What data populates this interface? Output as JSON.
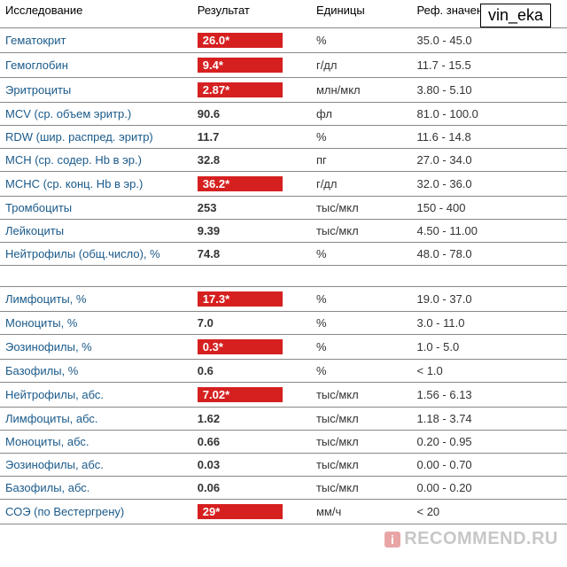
{
  "headers": {
    "name": "Исследование",
    "result": "Результат",
    "unit": "Единицы",
    "ref": "Реф. значения"
  },
  "watermark_top": "vin_eka",
  "watermark_bottom": "RECOMMEND.RU",
  "rows": [
    {
      "name": "Гематокрит",
      "result": "26.0*",
      "flag": true,
      "unit": "%",
      "ref": "35.0 - 45.0"
    },
    {
      "name": "Гемоглобин",
      "result": "9.4*",
      "flag": true,
      "unit": "г/дл",
      "ref": "11.7 - 15.5"
    },
    {
      "name": "Эритроциты",
      "result": "2.87*",
      "flag": true,
      "unit": "млн/мкл",
      "ref": "3.80 - 5.10"
    },
    {
      "name": "MCV (ср. объем эритр.)",
      "result": "90.6",
      "flag": false,
      "unit": "фл",
      "ref": "81.0 - 100.0"
    },
    {
      "name": "RDW (шир. распред. эритр)",
      "result": "11.7",
      "flag": false,
      "unit": "%",
      "ref": "11.6 - 14.8"
    },
    {
      "name": "MCH (ср. содер. Hb в эр.)",
      "result": "32.8",
      "flag": false,
      "unit": "пг",
      "ref": "27.0 - 34.0"
    },
    {
      "name": "MCHC (ср. конц. Hb в эр.)",
      "result": "36.2*",
      "flag": true,
      "unit": "г/дл",
      "ref": "32.0 - 36.0"
    },
    {
      "name": "Тромбоциты",
      "result": "253",
      "flag": false,
      "unit": "тыс/мкл",
      "ref": "150 - 400"
    },
    {
      "name": "Лейкоциты",
      "result": "9.39",
      "flag": false,
      "unit": "тыс/мкл",
      "ref": "4.50 - 11.00"
    },
    {
      "name": "Нейтрофилы (общ.число), %",
      "result": "74.8",
      "flag": false,
      "unit": "%",
      "ref": "48.0 - 78.0"
    },
    {
      "spacer": true
    },
    {
      "name": "Лимфоциты, %",
      "result": "17.3*",
      "flag": true,
      "unit": "%",
      "ref": "19.0 - 37.0"
    },
    {
      "name": "Моноциты, %",
      "result": "7.0",
      "flag": false,
      "unit": "%",
      "ref": "3.0 - 11.0"
    },
    {
      "name": "Эозинофилы, %",
      "result": "0.3*",
      "flag": true,
      "unit": "%",
      "ref": "1.0 - 5.0"
    },
    {
      "name": "Базофилы, %",
      "result": "0.6",
      "flag": false,
      "unit": "%",
      "ref": "< 1.0"
    },
    {
      "name": "Нейтрофилы, абс.",
      "result": "7.02*",
      "flag": true,
      "unit": "тыс/мкл",
      "ref": "1.56 - 6.13"
    },
    {
      "name": "Лимфоциты, абс.",
      "result": "1.62",
      "flag": false,
      "unit": "тыс/мкл",
      "ref": "1.18 - 3.74"
    },
    {
      "name": "Моноциты, абс.",
      "result": "0.66",
      "flag": false,
      "unit": "тыс/мкл",
      "ref": "0.20 - 0.95"
    },
    {
      "name": "Эозинофилы, абс.",
      "result": "0.03",
      "flag": false,
      "unit": "тыс/мкл",
      "ref": "0.00 - 0.70"
    },
    {
      "name": "Базофилы, абс.",
      "result": "0.06",
      "flag": false,
      "unit": "тыс/мкл",
      "ref": "0.00 - 0.20"
    },
    {
      "name": "СОЭ (по Вестергрену)",
      "result": "29*",
      "flag": true,
      "unit": "мм/ч",
      "ref": "< 20"
    }
  ]
}
